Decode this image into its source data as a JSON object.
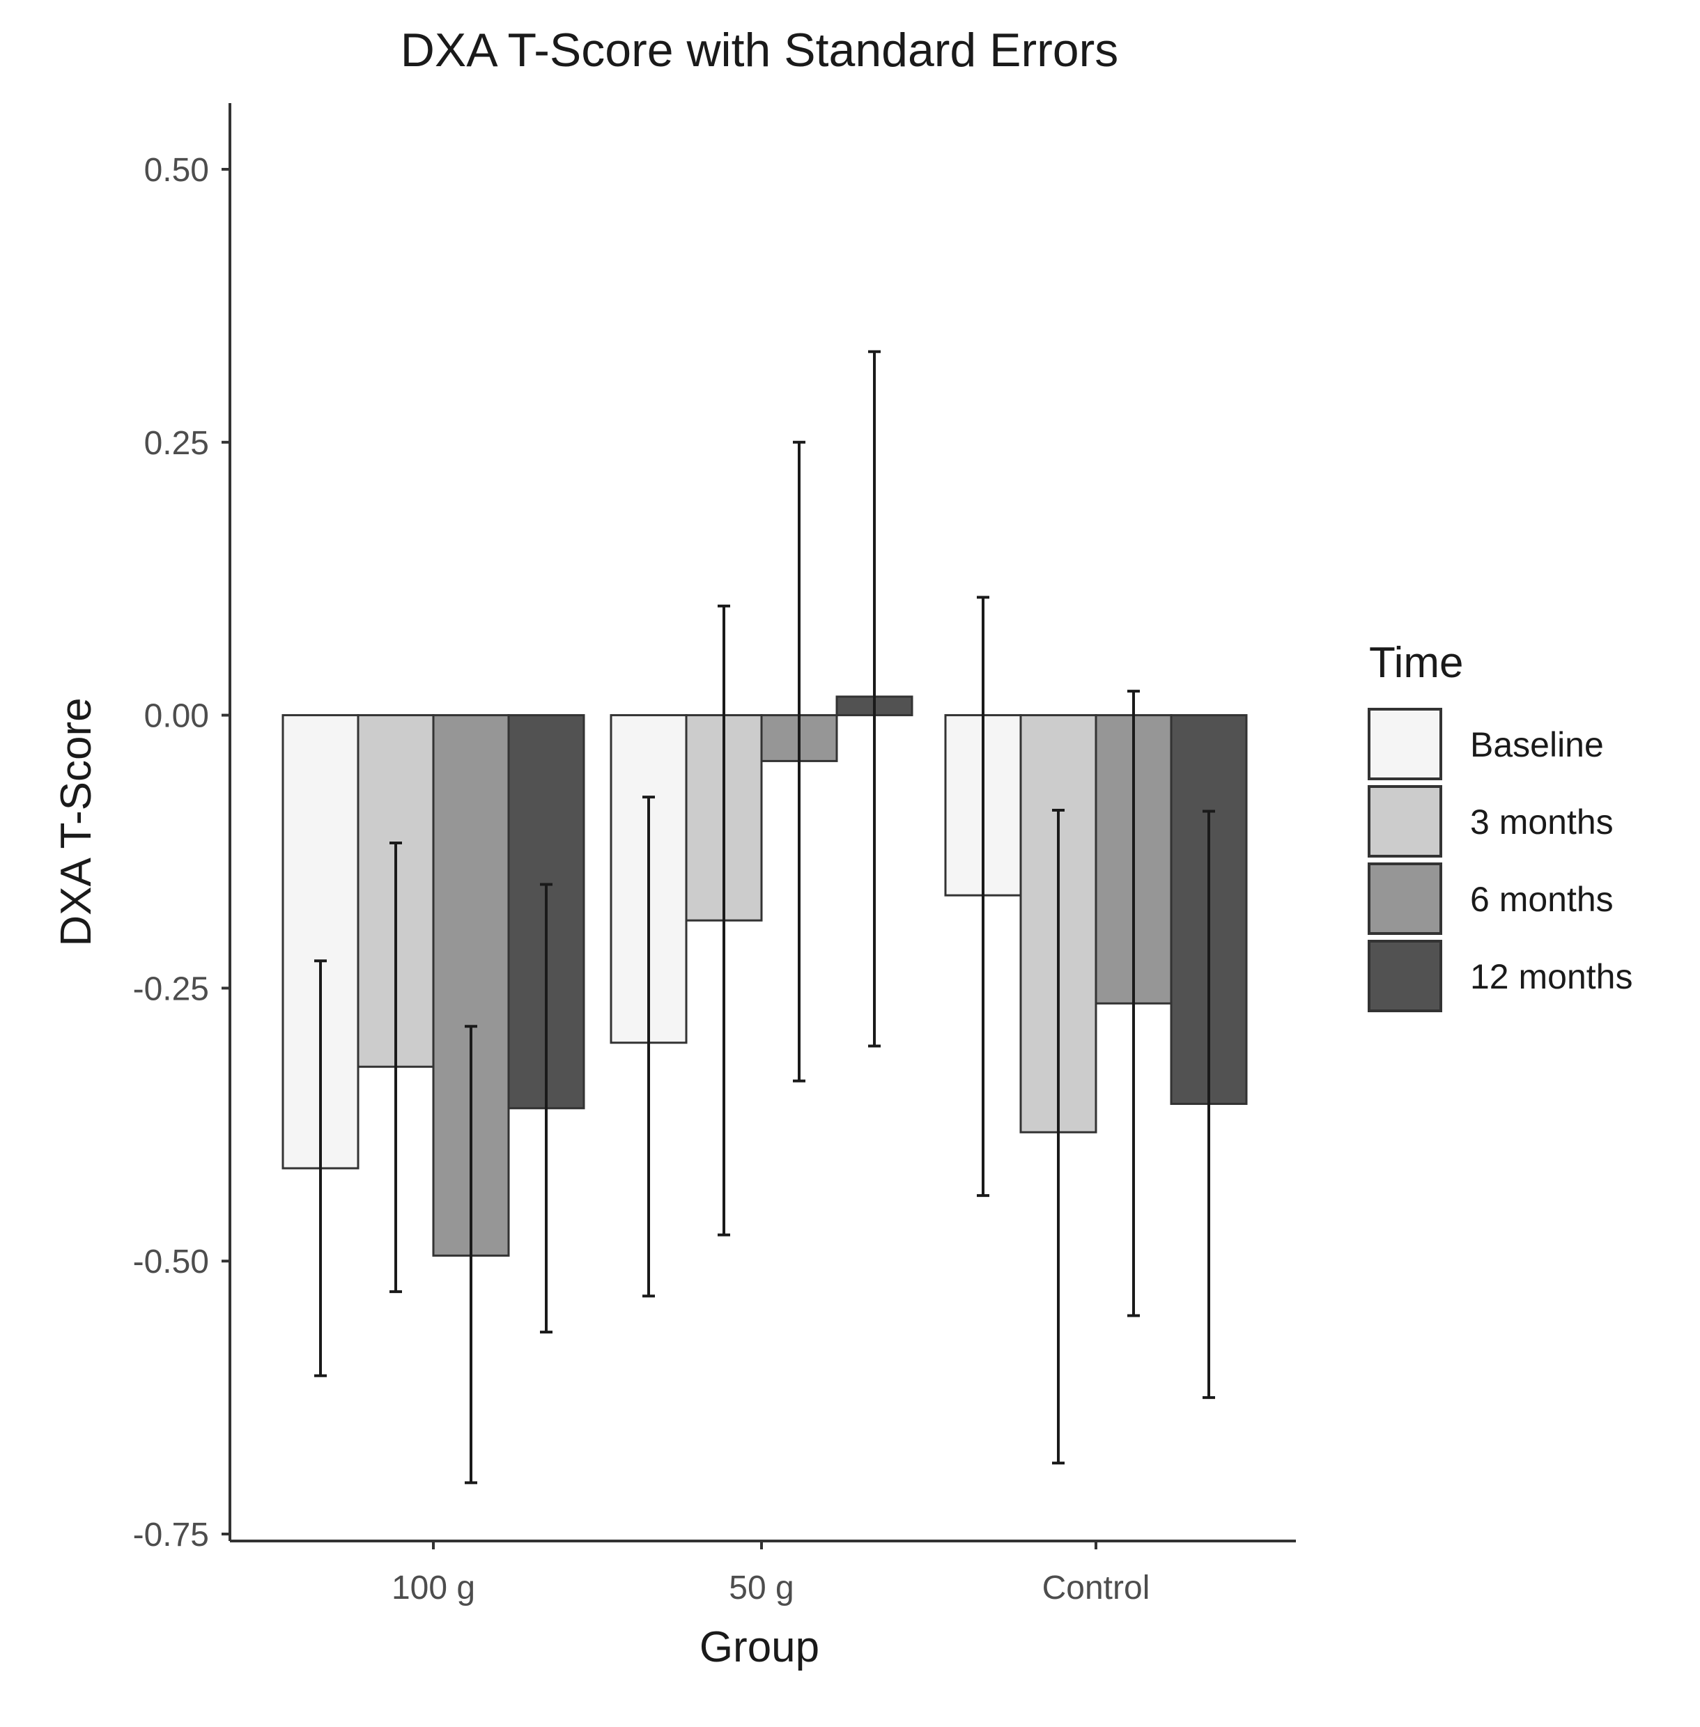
{
  "chart_data": {
    "type": "bar",
    "title": "DXA T-Score with Standard Errors",
    "xlabel": "Group",
    "ylabel": "DXA T-Score",
    "categories": [
      "100 g",
      "50 g",
      "Control"
    ],
    "ylim": [
      -0.75,
      0.5
    ],
    "yticks": [
      0.5,
      0.25,
      0.0,
      -0.25,
      -0.5,
      -0.75
    ],
    "ytick_labels": [
      "0.50",
      "0.25",
      "0.00",
      "-0.25",
      "-0.50",
      "-0.75"
    ],
    "grid": false,
    "legend": {
      "title": "Time",
      "position": "right"
    },
    "series": [
      {
        "name": "Baseline",
        "color": "#f5f5f5",
        "values": [
          -0.415,
          -0.3,
          -0.165
        ],
        "error_low": [
          -0.605,
          -0.532,
          -0.44
        ],
        "error_high": [
          -0.225,
          -0.075,
          0.108
        ]
      },
      {
        "name": "3 months",
        "color": "#cccccc",
        "values": [
          -0.322,
          -0.188,
          -0.382
        ],
        "error_low": [
          -0.528,
          -0.476,
          -0.685
        ],
        "error_high": [
          -0.117,
          0.1,
          -0.087
        ]
      },
      {
        "name": "6 months",
        "color": "#969696",
        "values": [
          -0.495,
          -0.042,
          -0.264
        ],
        "error_low": [
          -0.703,
          -0.335,
          -0.55
        ],
        "error_high": [
          -0.285,
          0.25,
          0.022
        ]
      },
      {
        "name": "12 months",
        "color": "#525252",
        "values": [
          -0.36,
          0.017,
          -0.356
        ],
        "error_low": [
          -0.565,
          -0.303,
          -0.625
        ],
        "error_high": [
          -0.155,
          0.333,
          -0.088
        ]
      }
    ]
  }
}
